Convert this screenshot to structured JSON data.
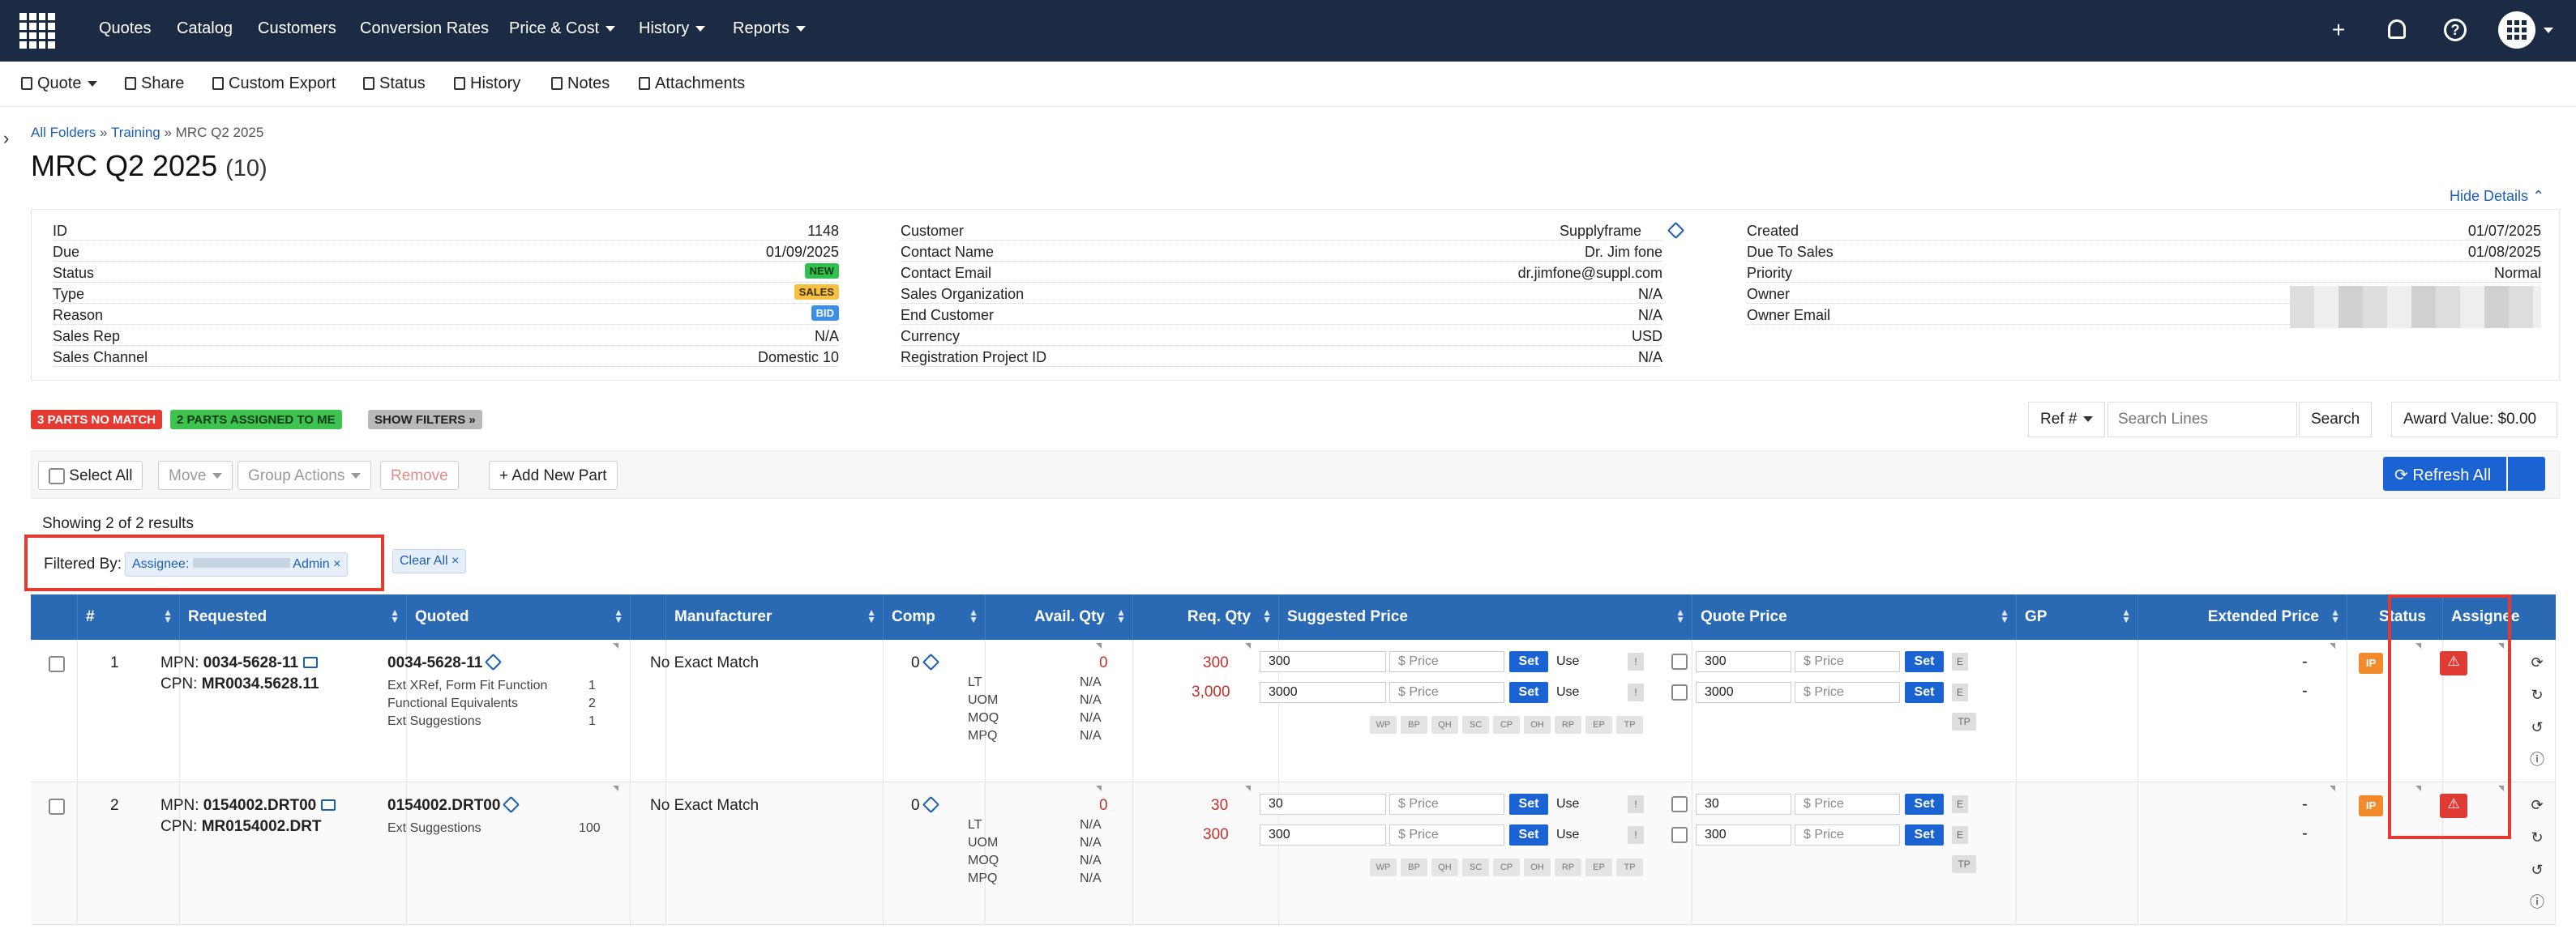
{
  "topnav": {
    "items": [
      {
        "label": "Quotes"
      },
      {
        "label": "Catalog"
      },
      {
        "label": "Customers"
      },
      {
        "label": "Conversion Rates"
      },
      {
        "label": "Price & Cost"
      },
      {
        "label": "History"
      },
      {
        "label": "Reports"
      }
    ],
    "icons": [
      "plus-icon",
      "bell-icon",
      "help-icon",
      "app-grid-icon"
    ],
    "plus_glyph": "+",
    "help_glyph": "?"
  },
  "toolbar": {
    "quote": "Quote",
    "share": "Share",
    "custom_export": "Custom Export",
    "status": "Status",
    "history": "History",
    "notes": "Notes",
    "attachments": "Attachments"
  },
  "breadcrumb": {
    "all_folders": "All Folders",
    "sep": "»",
    "training": "Training",
    "current": "MRC Q2 2025"
  },
  "page": {
    "title": "MRC Q2 2025",
    "count": "(10)",
    "hide_details": "Hide Details"
  },
  "details": {
    "col1": [
      {
        "k": "ID",
        "v": "1148"
      },
      {
        "k": "Due",
        "v": "01/09/2025"
      },
      {
        "k": "Status",
        "v": "NEW"
      },
      {
        "k": "Type",
        "v": "SALES"
      },
      {
        "k": "Reason",
        "v": "BID"
      },
      {
        "k": "Sales Rep",
        "v": "N/A"
      },
      {
        "k": "Sales Channel",
        "v": "Domestic 10"
      }
    ],
    "col2": [
      {
        "k": "Customer",
        "v": "Supplyframe"
      },
      {
        "k": "Contact Name",
        "v": "Dr. Jim fone"
      },
      {
        "k": "Contact Email",
        "v": "dr.jimfone@suppl.com"
      },
      {
        "k": "Sales Organization",
        "v": "N/A"
      },
      {
        "k": "End Customer",
        "v": "N/A"
      },
      {
        "k": "Currency",
        "v": "USD"
      },
      {
        "k": "Registration Project ID",
        "v": "N/A"
      }
    ],
    "col3": [
      {
        "k": "Created",
        "v": "01/07/2025"
      },
      {
        "k": "Due To Sales",
        "v": "01/08/2025"
      },
      {
        "k": "Priority",
        "v": "Normal"
      },
      {
        "k": "Owner",
        "v": ""
      },
      {
        "k": "Owner Email",
        "v": ""
      }
    ]
  },
  "filters": {
    "no_match": "3 PARTS NO MATCH",
    "assigned": "2 PARTS ASSIGNED TO ME",
    "show_filters": "SHOW FILTERS »"
  },
  "search": {
    "ref": "Ref #",
    "placeholder": "Search Lines",
    "button": "Search",
    "award": "Award Value:  $0.00"
  },
  "actions": {
    "select_all": "Select All",
    "move": "Move",
    "group_actions": "Group Actions",
    "remove": "Remove",
    "add_new_part": "+ Add New Part",
    "refresh_all": "Refresh All"
  },
  "results": {
    "showing": "Showing 2 of 2 results",
    "filtered_by": "Filtered By:",
    "chip": "Assignee: ",
    "chip_suffix": "Admin",
    "chip_x": "×",
    "clear_all": "Clear All",
    "clear_x": "×"
  },
  "grid": {
    "headers": {
      "num": "#",
      "requested": "Requested",
      "quoted": "Quoted",
      "manufacturer": "Manufacturer",
      "comp": "Comp",
      "avail": "Avail. Qty",
      "req": "Req. Qty",
      "suggested": "Suggested Price",
      "quote_price": "Quote Price",
      "gp": "GP",
      "extended": "Extended Price",
      "status": "Status",
      "assignee": "Assignee"
    },
    "price_placeholder": "$ Price",
    "set": "Set",
    "use": "Use",
    "e": "E",
    "bang": "!",
    "tp": "TP",
    "tags": [
      "WP",
      "BP",
      "QH",
      "SC",
      "CP",
      "OH",
      "RP",
      "EP",
      "TP"
    ],
    "warn_glyph": "⚠",
    "rows": [
      {
        "num": "1",
        "mpn_label": "MPN: ",
        "mpn": "0034-5628-11",
        "cpn_label": "CPN: ",
        "cpn": "MR0034.5628.11",
        "quoted": "0034-5628-11",
        "quoted_details": [
          {
            "k": "Ext XRef, Form Fit Function",
            "v": "1"
          },
          {
            "k": "Functional Equivalents",
            "v": "2"
          },
          {
            "k": "Ext Suggestions",
            "v": "1"
          }
        ],
        "manufacturer": "No Exact Match",
        "comp": "0",
        "avail": "0",
        "lt": "N/A",
        "uom": "N/A",
        "moq": "N/A",
        "mpq": "N/A",
        "req1": "300",
        "req2": "3,000",
        "sugg1": "300",
        "sugg2": "3000",
        "qp1": "300",
        "qp2": "3000",
        "ext1": "-",
        "ext2": "-",
        "status": "IP"
      },
      {
        "num": "2",
        "mpn_label": "MPN: ",
        "mpn": "0154002.DRT00",
        "cpn_label": "CPN: ",
        "cpn": "MR0154002.DRT",
        "quoted": "0154002.DRT00",
        "quoted_details": [
          {
            "k": "Ext Suggestions",
            "v": "100"
          }
        ],
        "manufacturer": "No Exact Match",
        "comp": "0",
        "avail": "0",
        "lt": "N/A",
        "uom": "N/A",
        "moq": "N/A",
        "mpq": "N/A",
        "req1": "30",
        "req2": "300",
        "sugg1": "30",
        "sugg2": "300",
        "qp1": "30",
        "qp2": "300",
        "ext1": "-",
        "ext2": "-",
        "status": "IP"
      }
    ],
    "avail_labels": {
      "lt": "LT",
      "uom": "UOM",
      "moq": "MOQ",
      "mpq": "MPQ"
    }
  },
  "colors": {
    "nav": "#1c2b44",
    "header": "#2a6ab5",
    "primary": "#1b63d3",
    "highlight": "#e53a32"
  }
}
